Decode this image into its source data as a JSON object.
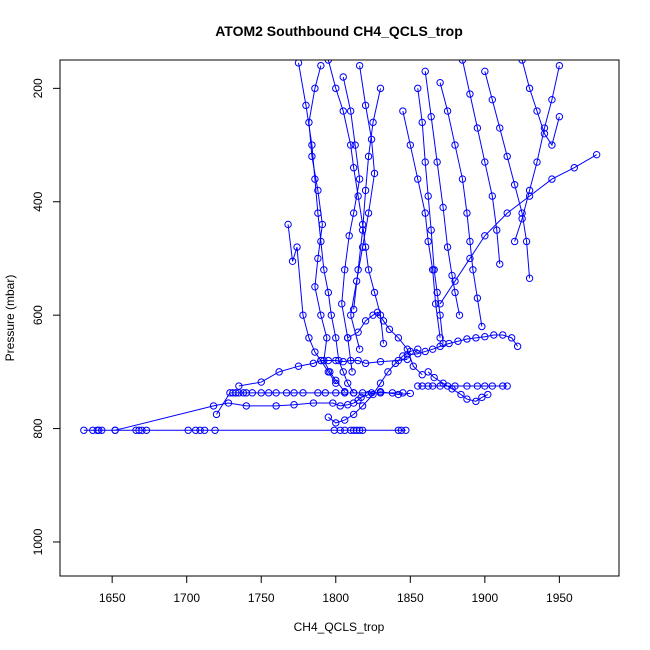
{
  "chart_data": {
    "type": "scatter",
    "title": "ATOM2 Southbound CH4_QCLS_trop",
    "xlabel": "CH4_QCLS_trop",
    "ylabel": "Pressure (mbar)",
    "xlim": [
      1615,
      1990
    ],
    "ylim": [
      1060,
      150
    ],
    "y_reversed": true,
    "x_ticks": [
      1650,
      1700,
      1750,
      1800,
      1850,
      1900,
      1950
    ],
    "y_ticks": [
      200,
      400,
      600,
      800,
      1000
    ],
    "grid": false,
    "legend": "none",
    "color": "#0000ff",
    "marker": "open-circle",
    "series": [
      {
        "x": [
          1631,
          1637,
          1640,
          1641,
          1643,
          1652,
          1666,
          1668,
          1670,
          1673,
          1701,
          1706,
          1709,
          1712,
          1719,
          1799,
          1803,
          1806,
          1810,
          1812,
          1814,
          1816,
          1818,
          1842,
          1844,
          1847
        ],
        "y": [
          803,
          803,
          803,
          803,
          803,
          803,
          803,
          803,
          803,
          803,
          803,
          803,
          803,
          803,
          803,
          803,
          803,
          803,
          803,
          803,
          803,
          803,
          803,
          803,
          803,
          803
        ]
      },
      {
        "x": [
          1652,
          1718,
          1728,
          1740,
          1760,
          1772,
          1785,
          1798,
          1803,
          1808,
          1812,
          1815,
          1817,
          1822,
          1830,
          1842,
          1850
        ],
        "y": [
          803,
          760,
          755,
          760,
          760,
          758,
          755,
          755,
          760,
          758,
          755,
          750,
          745,
          740,
          735,
          740,
          738
        ]
      },
      {
        "x": [
          1720,
          1729,
          1731,
          1733,
          1735,
          1738,
          1740,
          1744,
          1750,
          1755,
          1760,
          1767,
          1772,
          1778,
          1788,
          1793,
          1800,
          1806,
          1812,
          1818,
          1824,
          1830,
          1838,
          1845
        ],
        "y": [
          775,
          737,
          737,
          737,
          737,
          737,
          737,
          737,
          737,
          737,
          737,
          737,
          737,
          737,
          737,
          737,
          737,
          737,
          737,
          737,
          737,
          737,
          737,
          737
        ]
      },
      {
        "x": [
          1735,
          1750,
          1762,
          1775,
          1785,
          1790,
          1795,
          1800,
          1805,
          1810,
          1815,
          1820,
          1830,
          1842,
          1848
        ],
        "y": [
          725,
          718,
          700,
          690,
          685,
          680,
          680,
          680,
          682,
          680,
          680,
          685,
          682,
          680,
          678
        ]
      },
      {
        "x": [
          1855,
          1858,
          1862,
          1865,
          1870,
          1875,
          1880,
          1888,
          1895,
          1900,
          1905,
          1912,
          1915
        ],
        "y": [
          725,
          725,
          725,
          725,
          725,
          725,
          725,
          725,
          725,
          725,
          725,
          725,
          725
        ]
      },
      {
        "x": [
          1775,
          1780,
          1784,
          1786,
          1788,
          1790,
          1792,
          1795,
          1797,
          1800,
          1802,
          1805,
          1808,
          1812
        ],
        "y": [
          155,
          230,
          300,
          360,
          420,
          470,
          520,
          560,
          600,
          640,
          680,
          700,
          720,
          737
        ]
      },
      {
        "x": [
          1790,
          1786,
          1782,
          1784,
          1788,
          1791,
          1788,
          1786,
          1790,
          1794,
          1792,
          1796,
          1800,
          1806
        ],
        "y": [
          160,
          200,
          260,
          320,
          380,
          440,
          500,
          550,
          600,
          640,
          680,
          700,
          715,
          735
        ]
      },
      {
        "x": [
          1795,
          1800,
          1805,
          1810,
          1812,
          1815,
          1818,
          1820,
          1822,
          1826,
          1830,
          1832
        ],
        "y": [
          150,
          200,
          240,
          300,
          340,
          390,
          440,
          480,
          520,
          560,
          600,
          650
        ]
      },
      {
        "x": [
          1768,
          1771,
          1774,
          1778,
          1782,
          1786,
          1790,
          1795,
          1800
        ],
        "y": [
          440,
          505,
          480,
          600,
          640,
          665,
          680,
          700,
          720
        ]
      },
      {
        "x": [
          1805,
          1810,
          1813,
          1816,
          1812,
          1809,
          1806,
          1804,
          1808,
          1811
        ],
        "y": [
          180,
          240,
          300,
          360,
          420,
          460,
          520,
          580,
          640,
          700
        ]
      },
      {
        "x": [
          1816,
          1820,
          1824,
          1826,
          1822,
          1818,
          1814,
          1810,
          1816
        ],
        "y": [
          160,
          230,
          290,
          350,
          420,
          480,
          540,
          600,
          660
        ]
      },
      {
        "x": [
          1830,
          1825,
          1822,
          1820,
          1818,
          1815,
          1812
        ],
        "y": [
          200,
          260,
          320,
          380,
          450,
          520,
          590
        ]
      },
      {
        "x": [
          1795,
          1800,
          1806,
          1812,
          1818,
          1825,
          1830,
          1835,
          1840,
          1845,
          1850,
          1855
        ],
        "y": [
          780,
          790,
          785,
          775,
          760,
          740,
          720,
          700,
          685,
          672,
          664,
          660
        ]
      },
      {
        "x": [
          1808,
          1815,
          1820,
          1825,
          1828,
          1832,
          1836,
          1842,
          1848,
          1852,
          1858
        ],
        "y": [
          640,
          630,
          610,
          600,
          595,
          610,
          625,
          640,
          660,
          690,
          705
        ]
      },
      {
        "x": [
          1845,
          1850,
          1855,
          1860,
          1862,
          1865,
          1867,
          1870
        ],
        "y": [
          240,
          300,
          360,
          420,
          470,
          520,
          580,
          640
        ]
      },
      {
        "x": [
          1855,
          1858,
          1860,
          1862,
          1864,
          1866,
          1868,
          1870,
          1872
        ],
        "y": [
          200,
          260,
          330,
          390,
          450,
          520,
          560,
          600,
          650
        ]
      },
      {
        "x": [
          1860,
          1864,
          1868,
          1872,
          1875,
          1878,
          1880,
          1883
        ],
        "y": [
          170,
          250,
          330,
          410,
          480,
          530,
          560,
          600
        ]
      },
      {
        "x": [
          1870,
          1875,
          1880,
          1885,
          1888,
          1890,
          1892,
          1895,
          1898
        ],
        "y": [
          190,
          240,
          300,
          360,
          420,
          470,
          520,
          570,
          620
        ]
      },
      {
        "x": [
          1885,
          1890,
          1895,
          1900,
          1905,
          1908,
          1910
        ],
        "y": [
          150,
          210,
          270,
          330,
          390,
          450,
          510
        ]
      },
      {
        "x": [
          1900,
          1905,
          1910,
          1915,
          1920,
          1925,
          1928,
          1930
        ],
        "y": [
          170,
          220,
          270,
          320,
          370,
          420,
          470,
          535
        ]
      },
      {
        "x": [
          1925,
          1930,
          1935,
          1940,
          1945,
          1950
        ],
        "y": [
          150,
          200,
          240,
          280,
          300,
          250
        ]
      },
      {
        "x": [
          1950,
          1945,
          1940,
          1935,
          1930,
          1925,
          1920
        ],
        "y": [
          160,
          220,
          270,
          330,
          380,
          430,
          470
        ]
      },
      {
        "x": [
          1975,
          1960,
          1945,
          1930,
          1915,
          1900,
          1890,
          1880,
          1870
        ],
        "y": [
          317,
          340,
          360,
          390,
          420,
          460,
          500,
          540,
          580
        ]
      },
      {
        "x": [
          1848,
          1855,
          1860,
          1865,
          1870,
          1876,
          1882,
          1888,
          1894,
          1900,
          1906,
          1912,
          1918,
          1922
        ],
        "y": [
          670,
          668,
          664,
          660,
          655,
          650,
          646,
          642,
          640,
          638,
          635,
          635,
          640,
          655
        ]
      },
      {
        "x": [
          1862,
          1866,
          1872,
          1878,
          1884,
          1888,
          1894,
          1898,
          1902
        ],
        "y": [
          700,
          710,
          720,
          730,
          740,
          748,
          752,
          745,
          740
        ]
      }
    ]
  }
}
